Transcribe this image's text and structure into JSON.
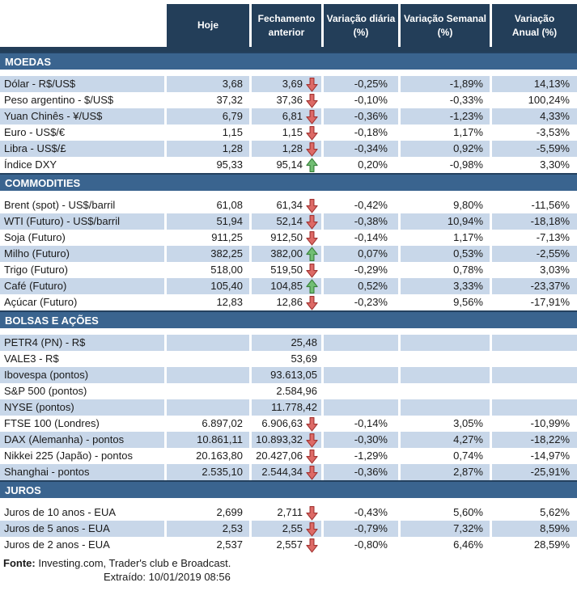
{
  "chart_data": {
    "type": "table",
    "columns": [
      "Hoje",
      "Fechamento\nanterior",
      "Variação diária\n(%)",
      "Variação Semanal\n(%)",
      "Variação\nAnual (%)"
    ],
    "sections": [
      {
        "title": "MOEDAS",
        "rows": [
          {
            "label": "Dólar - R$/US$",
            "hoje": "3,68",
            "fechamento": "3,69",
            "arrow": "down",
            "var_diaria": "-0,25%",
            "var_semanal": "-1,89%",
            "var_anual": "14,13%"
          },
          {
            "label": "Peso argentino - $/US$",
            "hoje": "37,32",
            "fechamento": "37,36",
            "arrow": "down",
            "var_diaria": "-0,10%",
            "var_semanal": "-0,33%",
            "var_anual": "100,24%"
          },
          {
            "label": "Yuan Chinês - ¥/US$",
            "hoje": "6,79",
            "fechamento": "6,81",
            "arrow": "down",
            "var_diaria": "-0,36%",
            "var_semanal": "-1,23%",
            "var_anual": "4,33%"
          },
          {
            "label": "Euro - US$/€",
            "hoje": "1,15",
            "fechamento": "1,15",
            "arrow": "down",
            "var_diaria": "-0,18%",
            "var_semanal": "1,17%",
            "var_anual": "-3,53%"
          },
          {
            "label": "Libra - US$/£",
            "hoje": "1,28",
            "fechamento": "1,28",
            "arrow": "down",
            "var_diaria": "-0,34%",
            "var_semanal": "0,92%",
            "var_anual": "-5,59%"
          },
          {
            "label": "Índice DXY",
            "hoje": "95,33",
            "fechamento": "95,14",
            "arrow": "up",
            "var_diaria": "0,20%",
            "var_semanal": "-0,98%",
            "var_anual": "3,30%"
          }
        ]
      },
      {
        "title": "COMMODITIES",
        "rows": [
          {
            "label": "Brent (spot) - US$/barril",
            "hoje": "61,08",
            "fechamento": "61,34",
            "arrow": "down",
            "var_diaria": "-0,42%",
            "var_semanal": "9,80%",
            "var_anual": "-11,56%"
          },
          {
            "label": "WTI (Futuro) - US$/barril",
            "hoje": "51,94",
            "fechamento": "52,14",
            "arrow": "down",
            "var_diaria": "-0,38%",
            "var_semanal": "10,94%",
            "var_anual": "-18,18%"
          },
          {
            "label": "Soja (Futuro)",
            "hoje": "911,25",
            "fechamento": "912,50",
            "arrow": "down",
            "var_diaria": "-0,14%",
            "var_semanal": "1,17%",
            "var_anual": "-7,13%"
          },
          {
            "label": "Milho (Futuro)",
            "hoje": "382,25",
            "fechamento": "382,00",
            "arrow": "up",
            "var_diaria": "0,07%",
            "var_semanal": "0,53%",
            "var_anual": "-2,55%"
          },
          {
            "label": "Trigo (Futuro)",
            "hoje": "518,00",
            "fechamento": "519,50",
            "arrow": "down",
            "var_diaria": "-0,29%",
            "var_semanal": "0,78%",
            "var_anual": "3,03%"
          },
          {
            "label": "Café (Futuro)",
            "hoje": "105,40",
            "fechamento": "104,85",
            "arrow": "up",
            "var_diaria": "0,52%",
            "var_semanal": "3,33%",
            "var_anual": "-23,37%"
          },
          {
            "label": "Açúcar (Futuro)",
            "hoje": "12,83",
            "fechamento": "12,86",
            "arrow": "down",
            "var_diaria": "-0,23%",
            "var_semanal": "9,56%",
            "var_anual": "-17,91%"
          }
        ]
      },
      {
        "title": "BOLSAS E AÇÕES",
        "rows": [
          {
            "label": "PETR4 (PN) - R$",
            "hoje": "",
            "fechamento": "25,48",
            "arrow": null,
            "var_diaria": "",
            "var_semanal": "",
            "var_anual": ""
          },
          {
            "label": "VALE3 - R$",
            "hoje": "",
            "fechamento": "53,69",
            "arrow": null,
            "var_diaria": "",
            "var_semanal": "",
            "var_anual": ""
          },
          {
            "label": "Ibovespa (pontos)",
            "hoje": "",
            "fechamento": "93.613,05",
            "arrow": null,
            "var_diaria": "",
            "var_semanal": "",
            "var_anual": ""
          },
          {
            "label": "S&P 500 (pontos)",
            "hoje": "",
            "fechamento": "2.584,96",
            "arrow": null,
            "var_diaria": "",
            "var_semanal": "",
            "var_anual": ""
          },
          {
            "label": "NYSE (pontos)",
            "hoje": "",
            "fechamento": "11.778,42",
            "arrow": null,
            "var_diaria": "",
            "var_semanal": "",
            "var_anual": ""
          },
          {
            "label": "FTSE 100 (Londres)",
            "hoje": "6.897,02",
            "fechamento": "6.906,63",
            "arrow": "down",
            "var_diaria": "-0,14%",
            "var_semanal": "3,05%",
            "var_anual": "-10,99%"
          },
          {
            "label": "DAX (Alemanha) - pontos",
            "hoje": "10.861,11",
            "fechamento": "10.893,32",
            "arrow": "down",
            "var_diaria": "-0,30%",
            "var_semanal": "4,27%",
            "var_anual": "-18,22%"
          },
          {
            "label": "Nikkei 225 (Japão) - pontos",
            "hoje": "20.163,80",
            "fechamento": "20.427,06",
            "arrow": "down",
            "var_diaria": "-1,29%",
            "var_semanal": "0,74%",
            "var_anual": "-14,97%"
          },
          {
            "label": "Shanghai - pontos",
            "hoje": "2.535,10",
            "fechamento": "2.544,34",
            "arrow": "down",
            "var_diaria": "-0,36%",
            "var_semanal": "2,87%",
            "var_anual": "-25,91%"
          }
        ]
      },
      {
        "title": "JUROS",
        "rows": [
          {
            "label": "Juros de 10 anos - EUA",
            "hoje": "2,699",
            "fechamento": "2,711",
            "arrow": "down",
            "var_diaria": "-0,43%",
            "var_semanal": "5,60%",
            "var_anual": "5,62%"
          },
          {
            "label": "Juros de 5 anos - EUA",
            "hoje": "2,53",
            "fechamento": "2,55",
            "arrow": "down",
            "var_diaria": "-0,79%",
            "var_semanal": "7,32%",
            "var_anual": "8,59%"
          },
          {
            "label": "Juros de 2 anos - EUA",
            "hoje": "2,537",
            "fechamento": "2,557",
            "arrow": "down",
            "var_diaria": "-0,80%",
            "var_semanal": "6,46%",
            "var_anual": "28,59%"
          }
        ]
      }
    ],
    "layout": {
      "grid": false,
      "alternating_rows": true,
      "first_row_shade_by_section": [
        "light",
        "white",
        "light",
        "white"
      ]
    }
  },
  "footer": {
    "fonte_label": "Fonte:",
    "fonte_text": " Investing.com, Trader's club e Broadcast.",
    "extraido_label": "Extraído:",
    "extraido_value": "10/01/2019 08:56"
  },
  "colors": {
    "header_navy": "#233E59",
    "section_band_blue": "#3A648F",
    "row_light_blue": "#C8D7E9",
    "row_white": "#FFFFFF",
    "arrow_down_fill": "#DD6A66",
    "arrow_down_stroke": "#A33533",
    "arrow_up_fill": "#71BE73",
    "arrow_up_stroke": "#38813B",
    "text": "#1A1A1A"
  },
  "icons": {
    "up": "up-arrow-icon",
    "down": "down-arrow-icon"
  }
}
